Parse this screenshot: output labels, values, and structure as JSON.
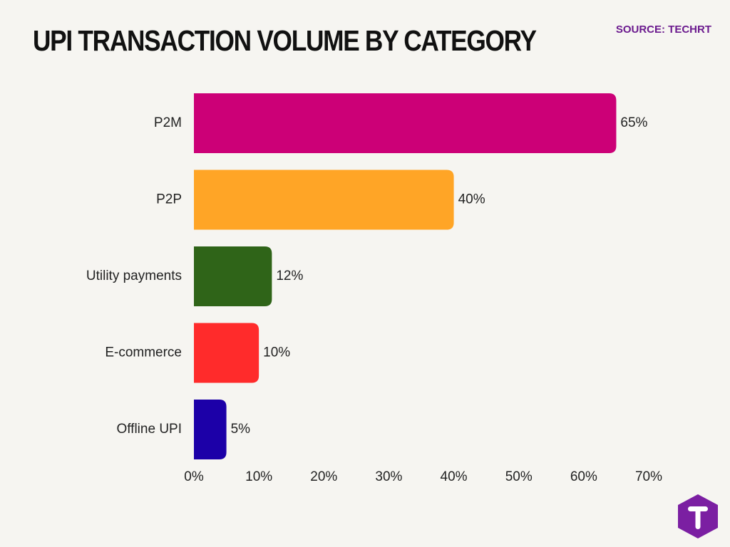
{
  "header": {
    "title": "UPI TRANSACTION VOLUME BY CATEGORY",
    "source": "SOURCE: TECHRT"
  },
  "colors": {
    "background": "#f6f5f1",
    "source_text": "#6b1a8e",
    "logo": "#7b1fa2"
  },
  "logo": {
    "icon": "techrt-t-logo-icon"
  },
  "chart_data": {
    "type": "bar",
    "orientation": "horizontal",
    "title": "UPI TRANSACTION VOLUME BY CATEGORY",
    "categories": [
      "P2M",
      "P2P",
      "Utility payments",
      "E-commerce",
      "Offline UPI"
    ],
    "values": [
      65,
      40,
      12,
      10,
      5
    ],
    "value_labels": [
      "65%",
      "40%",
      "12%",
      "10%",
      "5%"
    ],
    "bar_colors": [
      "#cc0077",
      "#ffa526",
      "#2f6418",
      "#ff2b2b",
      "#1c00a8"
    ],
    "xlim": [
      0,
      70
    ],
    "x_ticks": [
      0,
      10,
      20,
      30,
      40,
      50,
      60,
      70
    ],
    "x_tick_labels": [
      "0%",
      "10%",
      "20%",
      "30%",
      "40%",
      "50%",
      "60%",
      "70%"
    ],
    "xlabel": "",
    "ylabel": "",
    "grid": false,
    "legend": "none"
  }
}
